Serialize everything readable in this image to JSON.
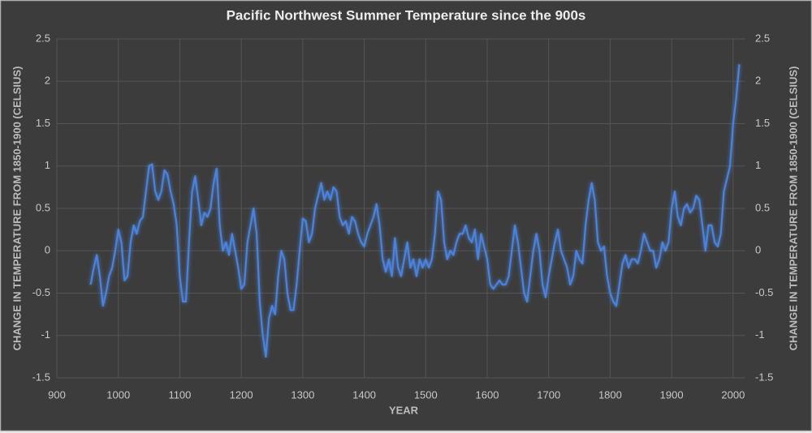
{
  "chart_data": {
    "type": "line",
    "title": "Pacific Northwest Summer Temperature since the 900s",
    "x_label": "YEAR",
    "y_label": "CHANGE IN TEMPERATURE FROM 1850-1900 (CELSIUS)",
    "y2_label": "CHANGE IN TEMPERATURE FROM 1850-1900 (CELSIUS)",
    "x": [
      955,
      960,
      965,
      970,
      975,
      980,
      985,
      990,
      995,
      1000,
      1005,
      1010,
      1015,
      1020,
      1025,
      1030,
      1035,
      1040,
      1045,
      1050,
      1055,
      1060,
      1065,
      1070,
      1075,
      1080,
      1085,
      1090,
      1095,
      1100,
      1105,
      1110,
      1115,
      1120,
      1125,
      1130,
      1135,
      1140,
      1145,
      1150,
      1155,
      1160,
      1165,
      1170,
      1175,
      1180,
      1185,
      1190,
      1195,
      1200,
      1205,
      1210,
      1215,
      1220,
      1225,
      1230,
      1235,
      1240,
      1245,
      1250,
      1255,
      1260,
      1265,
      1270,
      1275,
      1280,
      1285,
      1290,
      1295,
      1300,
      1305,
      1310,
      1315,
      1320,
      1325,
      1330,
      1335,
      1340,
      1345,
      1350,
      1355,
      1360,
      1365,
      1370,
      1375,
      1380,
      1385,
      1390,
      1395,
      1400,
      1405,
      1410,
      1415,
      1420,
      1425,
      1430,
      1435,
      1440,
      1445,
      1450,
      1455,
      1460,
      1465,
      1470,
      1475,
      1480,
      1485,
      1490,
      1495,
      1500,
      1505,
      1510,
      1515,
      1520,
      1525,
      1530,
      1535,
      1540,
      1545,
      1550,
      1555,
      1560,
      1565,
      1570,
      1575,
      1580,
      1585,
      1590,
      1595,
      1600,
      1605,
      1610,
      1615,
      1620,
      1625,
      1630,
      1635,
      1640,
      1645,
      1650,
      1655,
      1660,
      1665,
      1670,
      1675,
      1680,
      1685,
      1690,
      1695,
      1700,
      1705,
      1710,
      1715,
      1720,
      1725,
      1730,
      1735,
      1740,
      1745,
      1750,
      1755,
      1760,
      1765,
      1770,
      1775,
      1780,
      1785,
      1790,
      1795,
      1800,
      1805,
      1810,
      1815,
      1820,
      1825,
      1830,
      1835,
      1840,
      1845,
      1850,
      1855,
      1860,
      1865,
      1870,
      1875,
      1880,
      1885,
      1890,
      1895,
      1900,
      1905,
      1910,
      1915,
      1920,
      1925,
      1930,
      1935,
      1940,
      1945,
      1950,
      1955,
      1960,
      1965,
      1970,
      1975,
      1980,
      1985,
      1990,
      1995,
      2000,
      2005,
      2010
    ],
    "series": [
      {
        "color": "#4b82dc",
        "values": [
          -0.4,
          -0.2,
          -0.05,
          -0.3,
          -0.65,
          -0.5,
          -0.3,
          -0.2,
          0.0,
          0.25,
          0.1,
          -0.35,
          -0.3,
          0.1,
          0.3,
          0.2,
          0.35,
          0.4,
          0.7,
          1.0,
          1.02,
          0.7,
          0.6,
          0.7,
          0.95,
          0.9,
          0.7,
          0.55,
          0.3,
          -0.3,
          -0.6,
          -0.6,
          0.1,
          0.7,
          0.88,
          0.6,
          0.3,
          0.45,
          0.4,
          0.5,
          0.8,
          0.97,
          0.3,
          0.0,
          0.1,
          -0.05,
          0.2,
          0.0,
          -0.2,
          -0.45,
          -0.4,
          0.1,
          0.3,
          0.5,
          0.2,
          -0.6,
          -1.0,
          -1.25,
          -0.8,
          -0.65,
          -0.75,
          -0.3,
          0.0,
          -0.1,
          -0.5,
          -0.7,
          -0.7,
          -0.4,
          0.0,
          0.38,
          0.35,
          0.1,
          0.2,
          0.5,
          0.65,
          0.8,
          0.6,
          0.7,
          0.6,
          0.75,
          0.7,
          0.4,
          0.3,
          0.35,
          0.2,
          0.4,
          0.35,
          0.2,
          0.1,
          0.05,
          0.2,
          0.3,
          0.4,
          0.55,
          0.3,
          -0.1,
          -0.25,
          -0.1,
          -0.3,
          0.15,
          -0.2,
          -0.3,
          -0.1,
          0.1,
          -0.2,
          -0.1,
          -0.3,
          -0.1,
          -0.2,
          -0.1,
          -0.2,
          -0.1,
          0.2,
          0.7,
          0.6,
          0.1,
          -0.1,
          0.0,
          -0.05,
          0.1,
          0.2,
          0.2,
          0.3,
          0.15,
          0.1,
          0.25,
          -0.1,
          0.2,
          0.05,
          -0.1,
          -0.4,
          -0.45,
          -0.4,
          -0.35,
          -0.4,
          -0.4,
          -0.3,
          0.0,
          0.3,
          0.1,
          -0.2,
          -0.5,
          -0.6,
          -0.3,
          0.0,
          0.2,
          0.0,
          -0.4,
          -0.55,
          -0.3,
          -0.1,
          0.1,
          0.25,
          0.0,
          -0.1,
          -0.2,
          -0.4,
          -0.3,
          0.0,
          -0.1,
          -0.15,
          0.3,
          0.6,
          0.8,
          0.6,
          0.1,
          0.0,
          0.05,
          -0.3,
          -0.5,
          -0.6,
          -0.65,
          -0.4,
          -0.15,
          -0.05,
          -0.2,
          -0.1,
          -0.1,
          -0.15,
          0.0,
          0.2,
          0.1,
          0.0,
          0.0,
          -0.2,
          -0.1,
          0.1,
          0.0,
          0.1,
          0.5,
          0.7,
          0.4,
          0.3,
          0.5,
          0.55,
          0.45,
          0.5,
          0.65,
          0.6,
          0.3,
          0.0,
          0.3,
          0.3,
          0.1,
          0.05,
          0.2,
          0.7,
          0.85,
          1.0,
          1.5,
          1.8,
          2.2
        ]
      }
    ],
    "xlim": [
      900,
      2020
    ],
    "xticks": [
      900,
      1000,
      1100,
      1200,
      1300,
      1400,
      1500,
      1600,
      1700,
      1800,
      1900,
      2000
    ],
    "ylim": [
      -1.5,
      2.5
    ],
    "yticks": [
      -1.5,
      -1,
      -0.5,
      0,
      0.5,
      1,
      1.5,
      2,
      2.5
    ],
    "y2lim": [
      -1.5,
      2.5
    ],
    "y2ticks": [
      -1.5,
      -1,
      -0.5,
      0,
      0.5,
      1,
      1.5,
      2,
      2.5
    ],
    "grid": true
  }
}
